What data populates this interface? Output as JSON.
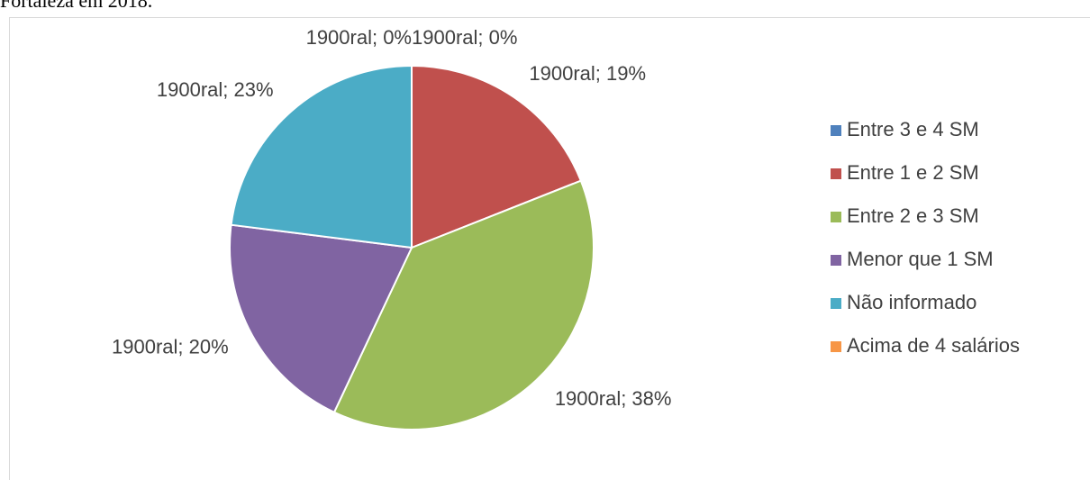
{
  "caption": "Fortaleza em 2018.",
  "chart_data": {
    "type": "pie",
    "categories": [
      "Entre 3 e 4 SM",
      "Entre 1 e 2 SM",
      "Entre 2 e 3 SM",
      "Menor que 1 SM",
      "Não informado",
      "Acima de 4 salários"
    ],
    "values": [
      0,
      19,
      38,
      20,
      23,
      0
    ],
    "value_labels": [
      "1900ral; 0%",
      "1900ral; 19%",
      "1900ral; 38%",
      "1900ral; 20%",
      "1900ral; 23%",
      "1900ral; 0%"
    ],
    "colors": [
      "#4f81bd",
      "#c0504d",
      "#9bbb59",
      "#8064a2",
      "#4bacc6",
      "#f79646"
    ],
    "legend": "right"
  }
}
